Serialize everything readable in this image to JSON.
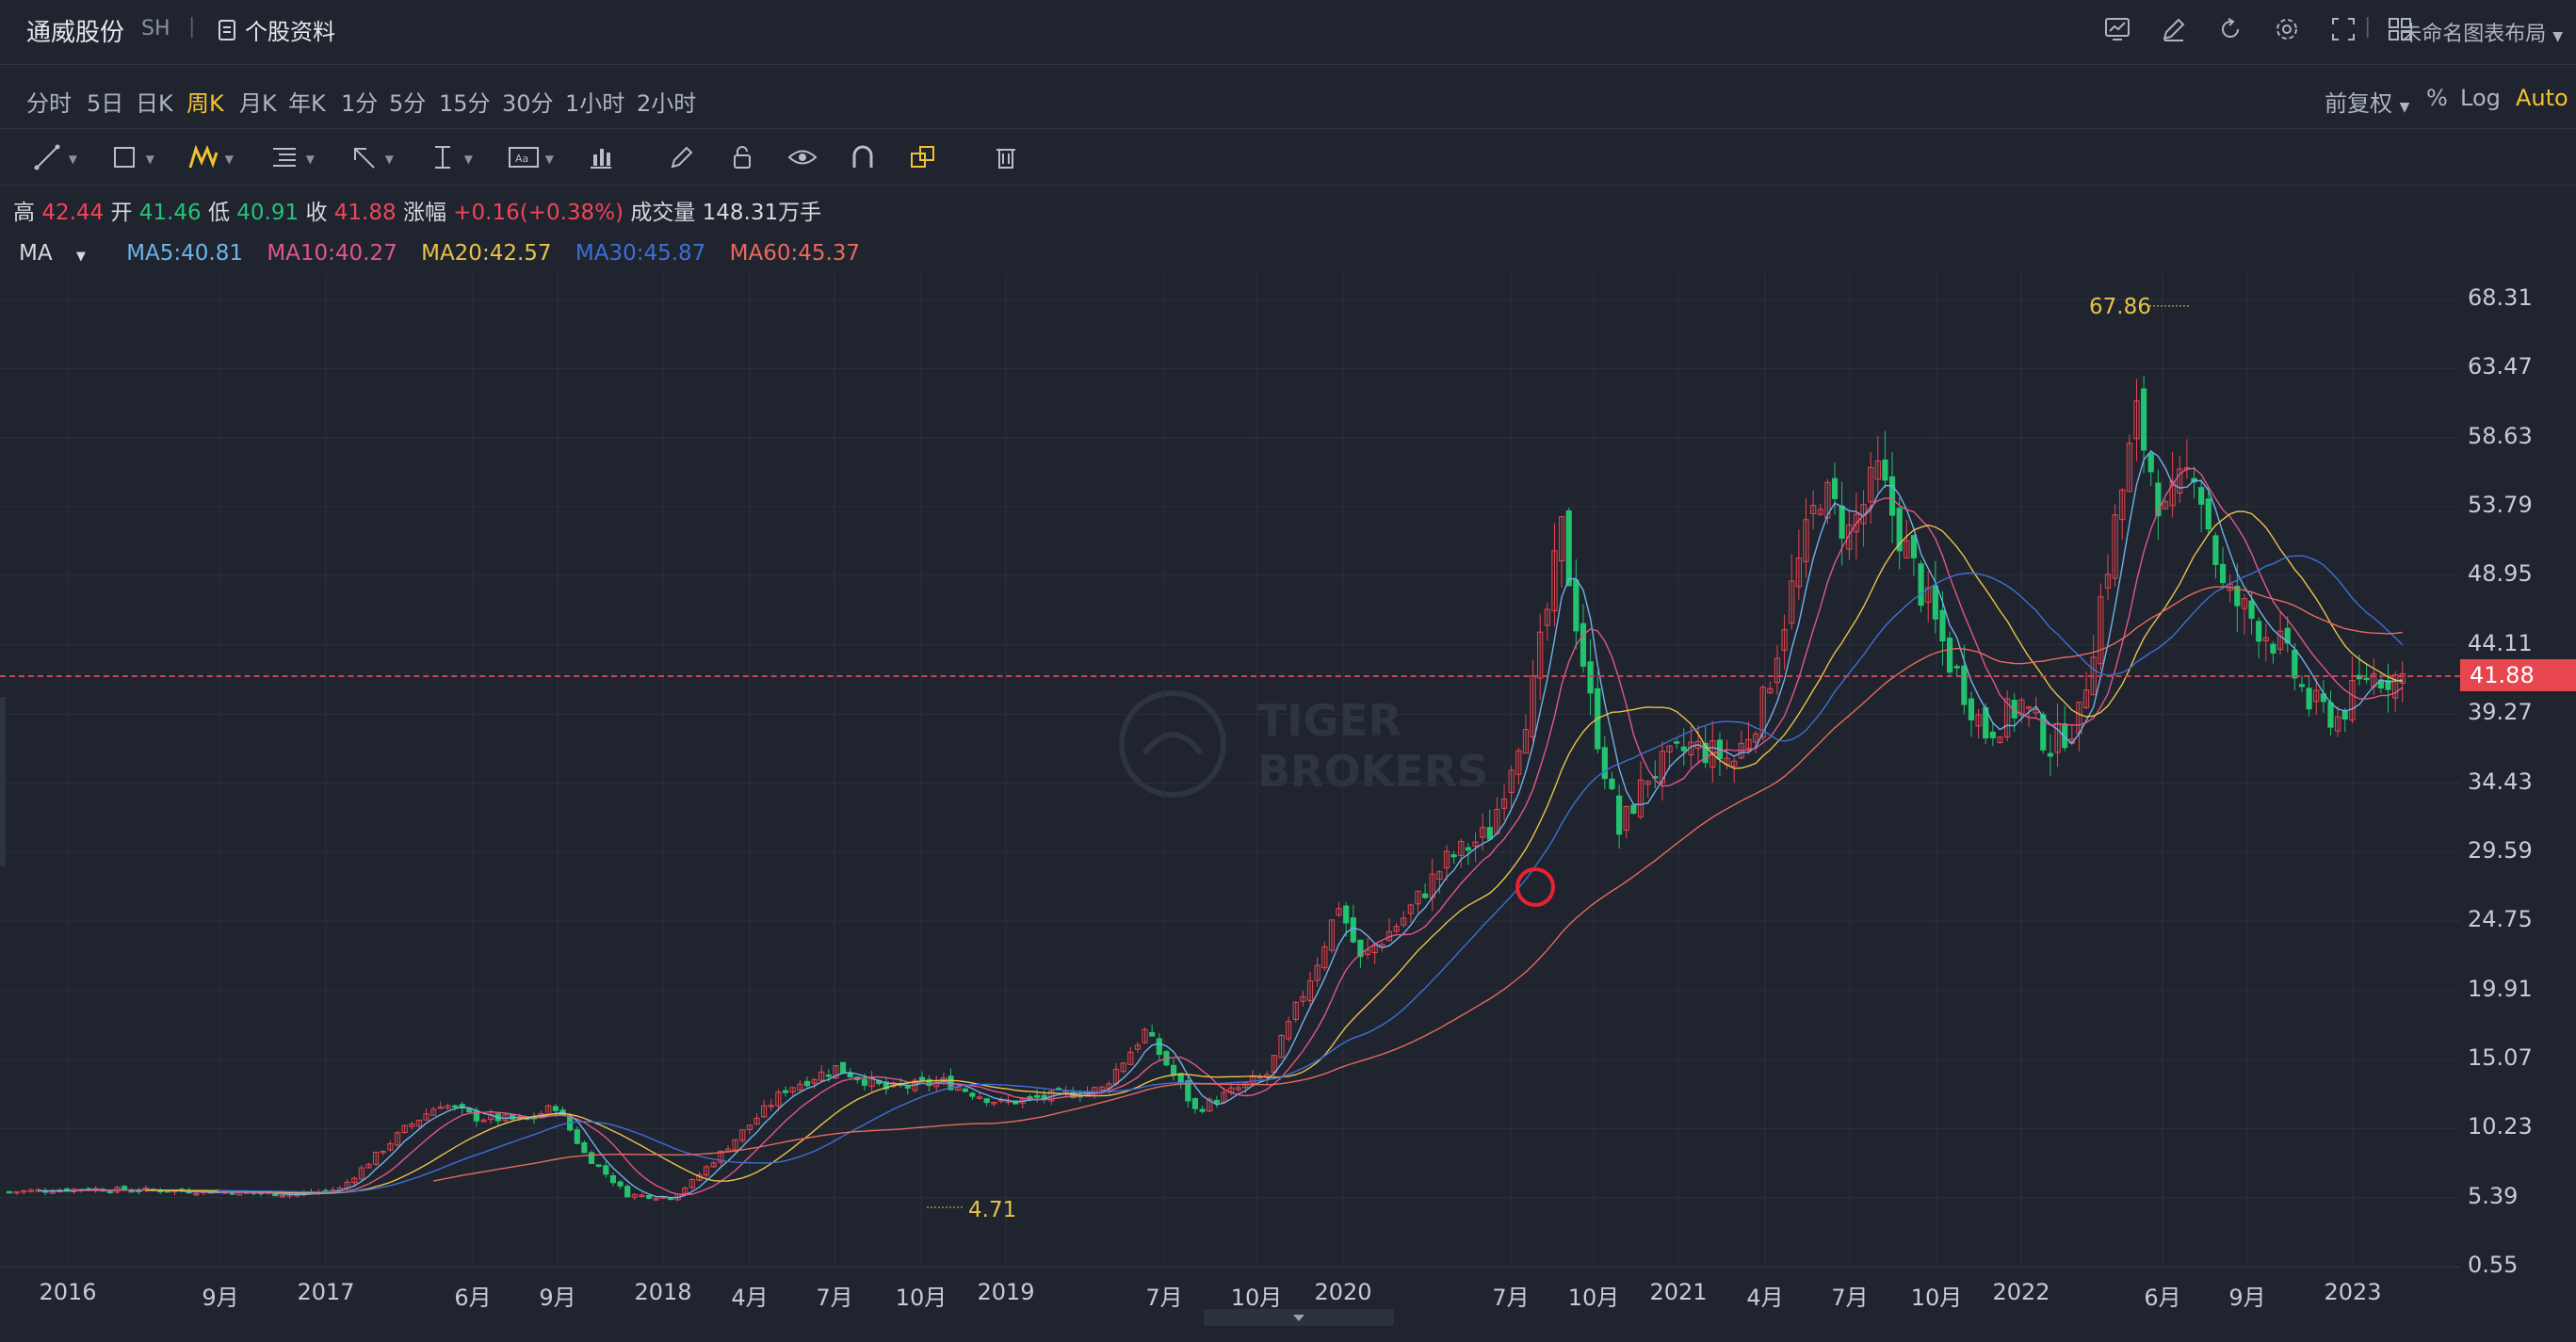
{
  "header": {
    "stock_name": "通威股份",
    "market": "SH",
    "profile_label": "个股资料",
    "layout_label": "未命名图表布局",
    "icons": [
      "chart-icon",
      "pen-edit-icon",
      "refresh-icon",
      "settings-icon",
      "fullscreen-icon",
      "grid-layout-icon"
    ]
  },
  "periods": [
    "分时",
    "5日",
    "日K",
    "周K",
    "月K",
    "年K",
    "1分",
    "5分",
    "15分",
    "30分",
    "1小时",
    "2小时"
  ],
  "active_period": "周K",
  "right_controls": {
    "adjust": "前复权",
    "percent": "%",
    "log": "Log",
    "auto": "Auto"
  },
  "toolbar": [
    "line-tool-icon",
    "rectangle-tool-icon",
    "pattern-tool-icon",
    "fib-tool-icon",
    "arrow-tool-icon",
    "text-cursor-tool-icon",
    "text-box-tool-icon",
    "measure-tool-icon",
    "pencil-icon",
    "lock-icon",
    "eye-icon",
    "magnet-icon",
    "stack-icon",
    "trash-icon"
  ],
  "ohlc": {
    "high_label": "高",
    "high": "42.44",
    "open_label": "开",
    "open": "41.46",
    "low_label": "低",
    "low": "40.91",
    "close_label": "收",
    "close": "41.88",
    "change_label": "涨幅",
    "change": "+0.16(+0.38%)",
    "volume_label": "成交量",
    "volume": "148.31万手"
  },
  "ma": {
    "label": "MA",
    "ma5": "MA5:40.81",
    "ma10": "MA10:40.27",
    "ma20": "MA20:42.57",
    "ma30": "MA30:45.87",
    "ma60": "MA60:45.37",
    "colors": {
      "ma5": "#6fb3e8",
      "ma10": "#e0578c",
      "ma20": "#e8c34a",
      "ma30": "#3f6fd6",
      "ma60": "#e86a5e"
    }
  },
  "watermark": {
    "line1": "TIGER",
    "line2": "BROKERS"
  },
  "chart_data": {
    "type": "candlestick",
    "current_price": "41.88",
    "max_label": "67.86",
    "min_label": "4.71",
    "y_ticks": [
      "68.31",
      "63.47",
      "58.63",
      "53.79",
      "48.95",
      "44.11",
      "39.27",
      "34.43",
      "29.59",
      "24.75",
      "19.91",
      "15.07",
      "10.23",
      "5.39",
      "0.55"
    ],
    "x_ticks": [
      "2016",
      "9月",
      "2017",
      "6月",
      "9月",
      "2018",
      "4月",
      "7月",
      "10月",
      "2019",
      "7月",
      "10月",
      "2020",
      "7月",
      "10月",
      "2021",
      "4月",
      "7月",
      "10月",
      "2022",
      "6月",
      "9月",
      "2023"
    ],
    "close_path": [
      [
        0,
        5.8
      ],
      [
        10,
        6
      ],
      [
        20,
        5.9
      ],
      [
        30,
        5.8
      ],
      [
        40,
        5.6
      ],
      [
        46,
        6
      ],
      [
        55,
        10.2
      ],
      [
        60,
        12
      ],
      [
        65,
        11
      ],
      [
        72,
        10.8
      ],
      [
        76,
        11.8
      ],
      [
        80,
        8.5
      ],
      [
        86,
        5.6
      ],
      [
        92,
        5.4
      ],
      [
        95,
        6.5
      ],
      [
        100,
        9
      ],
      [
        108,
        13
      ],
      [
        115,
        14.5
      ],
      [
        122,
        13
      ],
      [
        130,
        13.5
      ],
      [
        138,
        12
      ],
      [
        145,
        12.5
      ],
      [
        152,
        13
      ],
      [
        158,
        17
      ],
      [
        162,
        14
      ],
      [
        165,
        11.5
      ],
      [
        170,
        12.8
      ],
      [
        175,
        14
      ],
      [
        182,
        22
      ],
      [
        185,
        26
      ],
      [
        188,
        22
      ],
      [
        194,
        25
      ],
      [
        200,
        29
      ],
      [
        206,
        31
      ],
      [
        212,
        41
      ],
      [
        216,
        52
      ],
      [
        220,
        40
      ],
      [
        224,
        31
      ],
      [
        228,
        35
      ],
      [
        234,
        37
      ],
      [
        240,
        36
      ],
      [
        244,
        40
      ],
      [
        248,
        48
      ],
      [
        252,
        55
      ],
      [
        256,
        52
      ],
      [
        260,
        56
      ],
      [
        266,
        48
      ],
      [
        270,
        43
      ],
      [
        275,
        38
      ],
      [
        280,
        40
      ],
      [
        284,
        37
      ],
      [
        288,
        39
      ],
      [
        292,
        50
      ],
      [
        296,
        60
      ],
      [
        300,
        53
      ],
      [
        304,
        57
      ],
      [
        308,
        48
      ],
      [
        312,
        46
      ],
      [
        316,
        44
      ],
      [
        320,
        40
      ],
      [
        324,
        39
      ],
      [
        328,
        42
      ],
      [
        333,
        41.88
      ]
    ]
  },
  "icon_names": {
    "caret": "caret-down-icon",
    "scroll": "scroll-handle-icon"
  }
}
